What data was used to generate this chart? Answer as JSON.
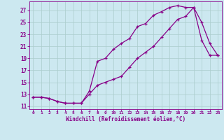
{
  "xlabel": "Windchill (Refroidissement éolien,°C)",
  "bg_color": "#cce8f0",
  "grid_color": "#aacccc",
  "line_color": "#880088",
  "xlim": [
    -0.5,
    23.5
  ],
  "ylim": [
    10.5,
    28.5
  ],
  "xticks": [
    0,
    1,
    2,
    3,
    4,
    5,
    6,
    7,
    8,
    9,
    10,
    11,
    12,
    13,
    14,
    15,
    16,
    17,
    18,
    19,
    20,
    21,
    22,
    23
  ],
  "yticks": [
    11,
    13,
    15,
    17,
    19,
    21,
    23,
    25,
    27
  ],
  "line1_x": [
    0,
    1,
    2,
    3,
    4,
    5,
    6,
    7,
    8,
    9,
    10,
    11,
    12,
    13,
    14,
    15,
    16,
    17,
    18,
    19,
    20,
    21,
    22,
    23
  ],
  "line1_y": [
    12.5,
    12.5,
    12.3,
    11.8,
    11.5,
    11.5,
    11.5,
    13.5,
    18.5,
    19.0,
    20.5,
    21.5,
    22.3,
    24.3,
    24.8,
    26.2,
    26.8,
    27.5,
    27.8,
    27.5,
    27.5,
    25.0,
    21.5,
    19.5
  ],
  "line2_x": [
    0,
    1,
    2,
    3,
    4,
    5,
    6,
    7,
    8,
    9,
    10,
    11,
    12,
    13,
    14,
    15,
    16,
    17,
    18,
    19,
    20,
    21,
    22,
    23
  ],
  "line2_y": [
    12.5,
    12.5,
    12.3,
    11.8,
    11.5,
    11.5,
    11.5,
    13.0,
    14.5,
    15.0,
    15.5,
    16.0,
    17.5,
    19.0,
    20.0,
    21.0,
    22.5,
    24.0,
    25.5,
    26.0,
    27.5,
    22.0,
    19.5,
    19.5
  ]
}
